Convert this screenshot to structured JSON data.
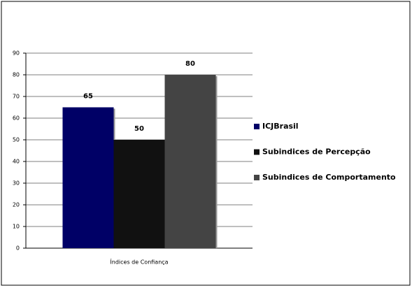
{
  "chart_data": {
    "type": "bar",
    "categories": [
      "Índices de Confiança"
    ],
    "series": [
      {
        "name": "ICJBrasil",
        "color": "#000066",
        "values": [
          65
        ]
      },
      {
        "name": "Subindices de Percepção",
        "color": "#111111",
        "values": [
          50
        ]
      },
      {
        "name": "Subindices de Comportamento",
        "color": "#444444",
        "values": [
          80
        ]
      }
    ],
    "ylim": [
      0,
      90
    ],
    "yticks": [
      0,
      10,
      20,
      30,
      40,
      50,
      60,
      70,
      80,
      90
    ],
    "grid": true,
    "legend": "right"
  }
}
